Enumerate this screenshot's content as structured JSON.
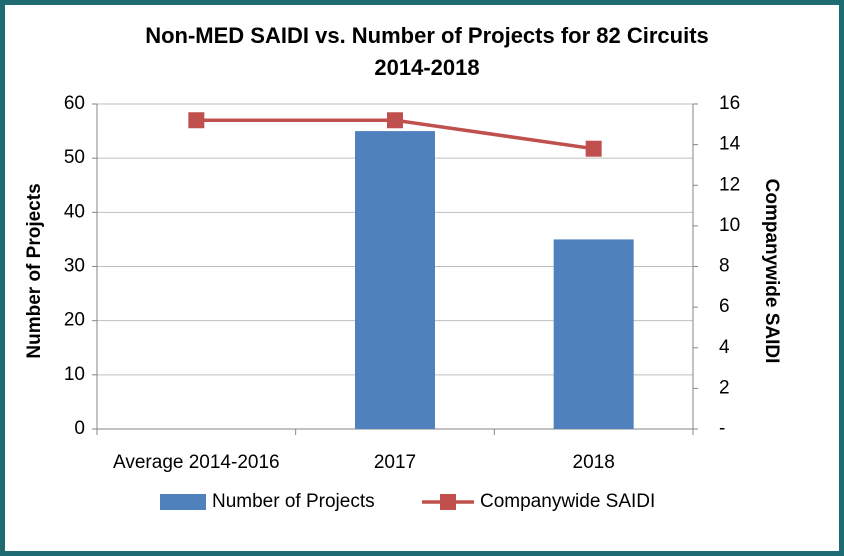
{
  "chart_data": {
    "type": "bar-line",
    "title": "Non-MED SAIDI  vs. Number of Projects for 82 Circuits",
    "subtitle": "2014-2018",
    "y_label": "Number of Projects",
    "y2_label": "Companywide SAIDI",
    "categories": [
      "Average 2014-2016",
      "2017",
      "2018"
    ],
    "series": [
      {
        "name": "Number of Projects",
        "type": "bar",
        "color": "#4f81bd",
        "values": [
          null,
          55,
          35
        ]
      },
      {
        "name": "Companywide SAIDI",
        "type": "line",
        "axis": "y2",
        "color": "#c0504d",
        "values": [
          15.2,
          15.2,
          13.8
        ]
      }
    ],
    "ylim": [
      0,
      60
    ],
    "yticks": [
      0,
      10,
      20,
      30,
      40,
      50,
      60
    ],
    "y2lim": [
      0,
      16
    ],
    "y2ticks": [
      {
        "value": 0,
        "label": "-"
      },
      2,
      4,
      6,
      8,
      10,
      12,
      14,
      16
    ],
    "grid": true,
    "legend": "bottom"
  }
}
